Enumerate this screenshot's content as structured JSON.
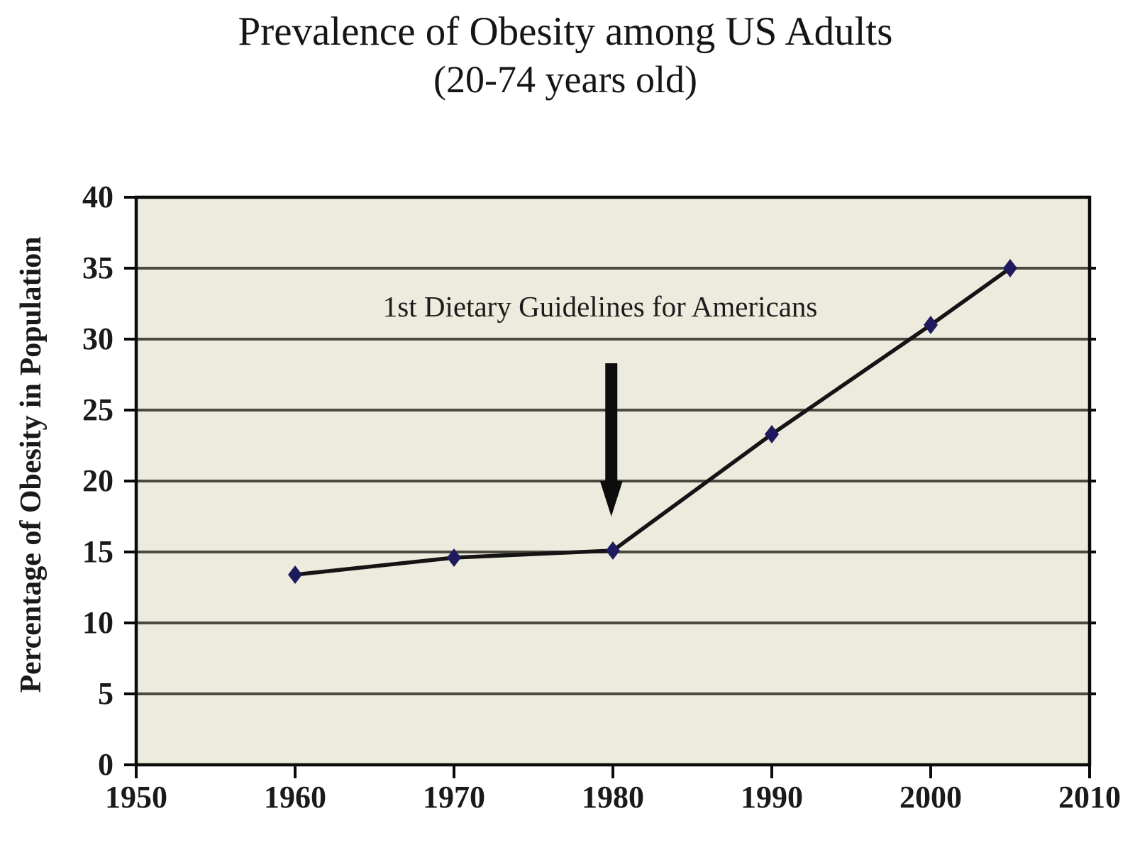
{
  "title": {
    "line1": "Prevalence of Obesity among US Adults",
    "line2": "(20-74 years old)"
  },
  "chart_data": {
    "type": "line",
    "title": "Prevalence of Obesity among US Adults (20-74 years old)",
    "xlabel": "",
    "ylabel": "Percentage of Obesity in Population",
    "xlim": [
      1950,
      2010
    ],
    "ylim": [
      0,
      40
    ],
    "xticks": [
      1950,
      1960,
      1970,
      1980,
      1990,
      2000,
      2010
    ],
    "yticks": [
      0,
      5,
      10,
      15,
      20,
      25,
      30,
      35,
      40
    ],
    "grid": "horizontal",
    "legend": "none",
    "series": [
      {
        "points": [
          {
            "x": 1960,
            "y": 13.4
          },
          {
            "x": 1970,
            "y": 14.6
          },
          {
            "x": 1980,
            "y": 15.1
          },
          {
            "x": 1990,
            "y": 23.3
          },
          {
            "x": 2000,
            "y": 31.0
          },
          {
            "x": 2005,
            "y": 35.0
          }
        ]
      }
    ],
    "annotation": {
      "text": "1st Dietary Guidelines for Americans",
      "anchor": {
        "x": 1979.2,
        "y": 32.3
      },
      "arrow": {
        "x": 1979.9,
        "from_y": 28.3,
        "head_y": 20.0,
        "tip_y": 17.5
      }
    },
    "colors": {
      "line": "#141414",
      "marker": "#1f1a5e",
      "grid": "#4b4a40",
      "axis": "#0a0a0a",
      "arrow": "#0d0d0d",
      "plot_bg": "#edeade",
      "page_bg": "#ffffff",
      "text": "#141414"
    }
  }
}
